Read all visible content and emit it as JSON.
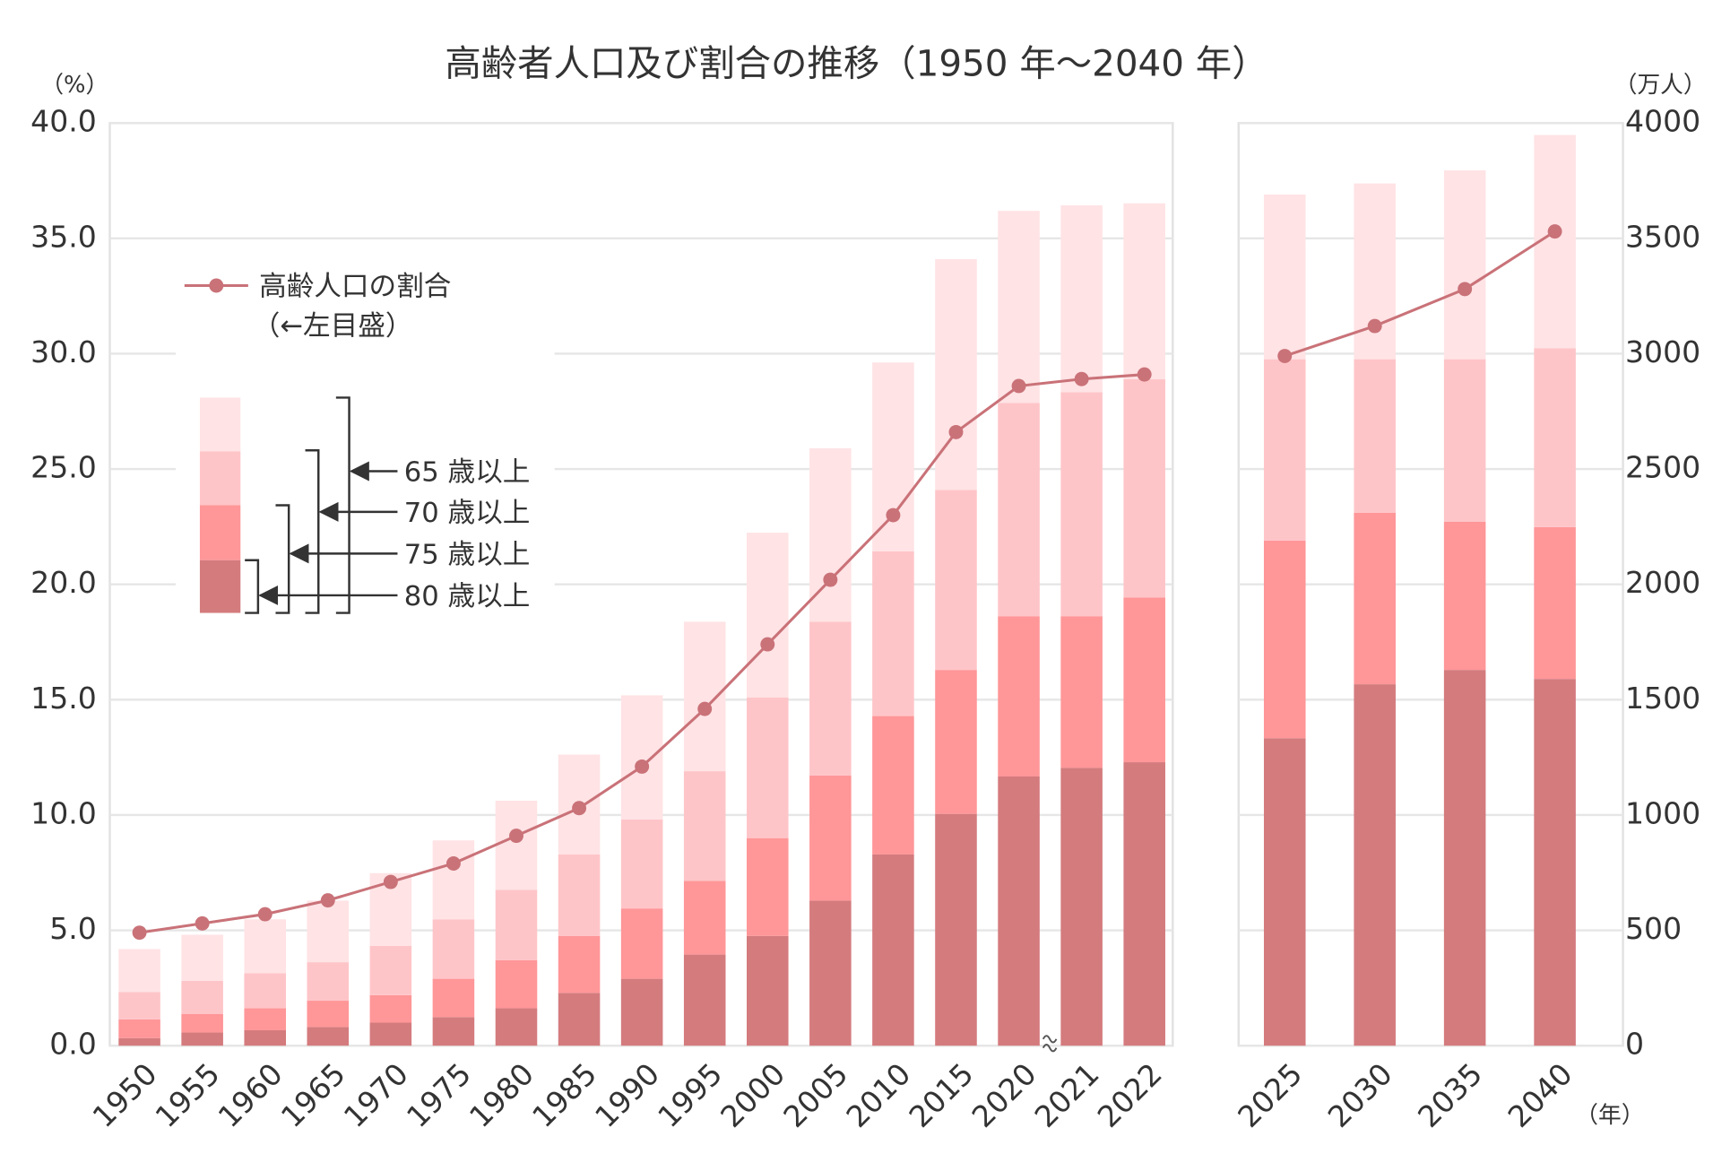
{
  "chart_data": [
    {
      "type": "bar",
      "title": "高齢者人口及び割合の推移（1950 年～2040 年）",
      "y_unit": "（%）",
      "categories": [
        "1950",
        "1955",
        "1960",
        "1965",
        "1970",
        "1975",
        "1980",
        "1985",
        "1990",
        "1995",
        "2000",
        "2005",
        "2010",
        "2015",
        "2020",
        "2021",
        "2022"
      ],
      "ylim": [
        0,
        40
      ],
      "yticks": [
        {
          "value": 0,
          "label": "0.0"
        },
        {
          "value": 5,
          "label": "5.0"
        },
        {
          "value": 10,
          "label": "10.0"
        },
        {
          "value": 15,
          "label": "15.0"
        },
        {
          "value": 20,
          "label": "20.0"
        },
        {
          "value": 25,
          "label": "25.0"
        },
        {
          "value": 30,
          "label": "30.0"
        },
        {
          "value": 35,
          "label": "35.0"
        },
        {
          "value": 40,
          "label": "40.0"
        }
      ],
      "y2lim": [
        0,
        4000
      ],
      "grid": true,
      "stacked": true,
      "legend_note": "（←左目盛）",
      "series": [
        {
          "name": "80 歳以上",
          "color": "#d47b7e",
          "axis": "y2",
          "values": [
            33,
            57,
            67,
            81,
            100,
            124,
            162,
            229,
            290,
            395,
            476,
            629,
            829,
            1005,
            1167,
            1205,
            1229
          ]
        },
        {
          "name": "75 歳以上",
          "color": "#ff9698",
          "axis": "y2",
          "values": [
            81,
            81,
            95,
            114,
            119,
            166,
            209,
            247,
            305,
            319,
            424,
            542,
            600,
            624,
            695,
            657,
            714
          ]
        },
        {
          "name": "70 歳以上",
          "color": "#fec5c8",
          "axis": "y2",
          "values": [
            119,
            143,
            152,
            167,
            214,
            258,
            305,
            353,
            386,
            476,
            610,
            667,
            714,
            781,
            924,
            971,
            947
          ]
        },
        {
          "name": "65 歳以上",
          "color": "#ffe3e5",
          "axis": "y2",
          "values": [
            186,
            200,
            234,
            267,
            315,
            342,
            386,
            433,
            538,
            648,
            714,
            752,
            819,
            1000,
            833,
            810,
            762
          ]
        },
        {
          "name": "高齢人口の割合",
          "type": "line",
          "color": "#c97278",
          "values": [
            4.9,
            5.3,
            5.7,
            6.3,
            7.1,
            7.9,
            9.1,
            10.3,
            12.1,
            14.6,
            17.4,
            20.2,
            23.0,
            26.6,
            28.6,
            28.9,
            29.1
          ]
        }
      ]
    },
    {
      "type": "bar",
      "y2_unit": "（万人）",
      "x_unit": "（年）",
      "categories": [
        "2025",
        "2030",
        "2035",
        "2040"
      ],
      "ylim": [
        0,
        40
      ],
      "y2lim": [
        0,
        4000
      ],
      "y2ticks": [
        0,
        500,
        1000,
        1500,
        2000,
        2500,
        3000,
        3500,
        4000
      ],
      "grid": true,
      "stacked": true,
      "series": [
        {
          "color": "#d47b7e",
          "axis": "y2",
          "values": [
            1333,
            1567,
            1629,
            1590
          ]
        },
        {
          "color": "#ff9698",
          "axis": "y2",
          "values": [
            857,
            743,
            642,
            658
          ]
        },
        {
          "color": "#fec5c8",
          "axis": "y2",
          "values": [
            786,
            666,
            705,
            776
          ]
        },
        {
          "color": "#ffe3e5",
          "axis": "y2",
          "values": [
            714,
            762,
            819,
            924
          ]
        },
        {
          "type": "line",
          "color": "#c97278",
          "values": [
            29.9,
            31.2,
            32.8,
            35.3
          ]
        }
      ]
    }
  ]
}
